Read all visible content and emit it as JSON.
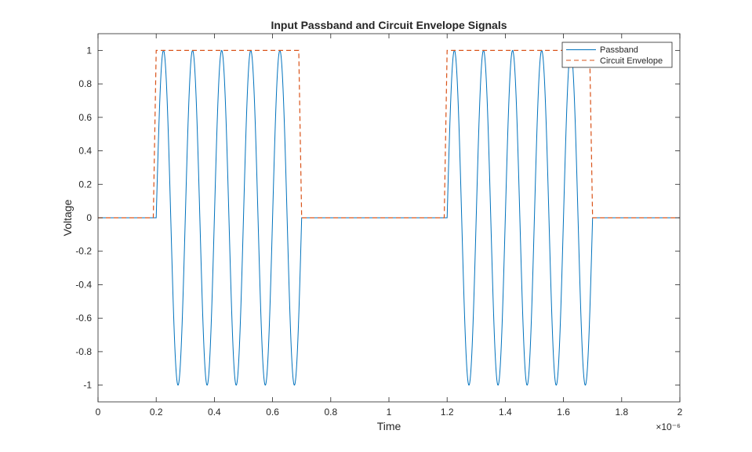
{
  "chart_data": {
    "type": "line",
    "title": "Input Passband and Circuit Envelope Signals",
    "xlabel": "Time",
    "ylabel": "Voltage",
    "x_exponent_label": "×10⁻⁶",
    "xlim": [
      0,
      2e-06
    ],
    "ylim": [
      -1.1,
      1.1
    ],
    "x_ticks": [
      0,
      2e-07,
      4e-07,
      6e-07,
      8e-07,
      1e-06,
      1.2e-06,
      1.4e-06,
      1.6e-06,
      1.8e-06,
      2e-06
    ],
    "x_tick_labels": [
      "0",
      "0.2",
      "0.4",
      "0.6",
      "0.8",
      "1",
      "1.2",
      "1.4",
      "1.6",
      "1.8",
      "2"
    ],
    "y_ticks": [
      -1,
      -0.8,
      -0.6,
      -0.4,
      -0.2,
      0,
      0.2,
      0.4,
      0.6,
      0.8,
      1
    ],
    "y_tick_labels": [
      "-1",
      "-0.8",
      "-0.6",
      "-0.4",
      "-0.2",
      "0",
      "0.2",
      "0.4",
      "0.6",
      "0.8",
      "1"
    ],
    "grid": false,
    "legend_position": "top-right",
    "series": [
      {
        "name": "Passband",
        "style": "solid",
        "color": "#0072BD",
        "bursts": [
          {
            "start": 2e-07,
            "end": 7e-07
          },
          {
            "start": 1.2e-06,
            "end": 1.7e-06
          }
        ],
        "carrier_frequency_hz": 10000000.0,
        "amplitude": 1
      },
      {
        "name": "Circuit Envelope",
        "style": "dashed",
        "color": "#D95319",
        "x": [
          0,
          1.9e-07,
          2e-07,
          6.9e-07,
          7e-07,
          1.19e-06,
          1.2e-06,
          1.69e-06,
          1.7e-06,
          2e-06
        ],
        "y": [
          0,
          0,
          1,
          1,
          0,
          0,
          1,
          1,
          0,
          0
        ]
      }
    ]
  }
}
